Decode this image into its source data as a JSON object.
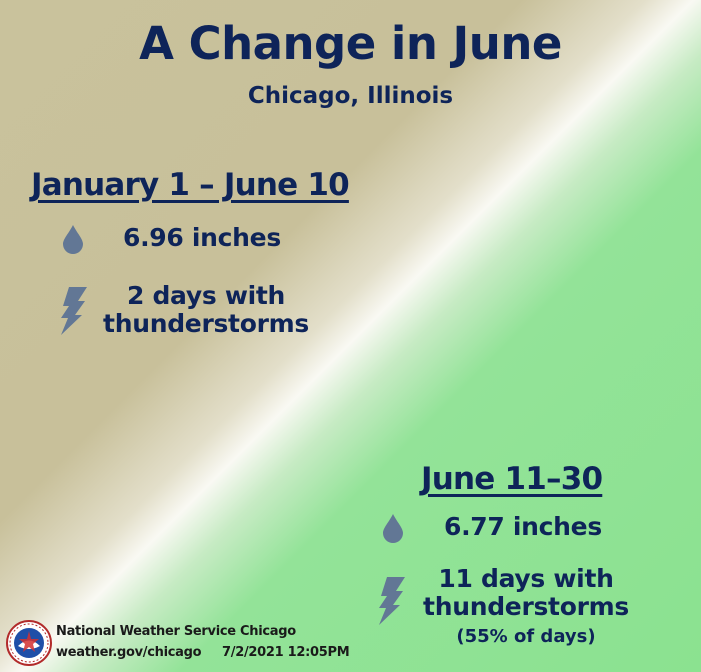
{
  "title": "A Change in June",
  "subtitle": "Chicago, Illinois",
  "period1": {
    "heading": "January 1 – June 10",
    "rainfall": "6.96 inches",
    "storm_line1": "2 days with",
    "storm_line2": "thunderstorms"
  },
  "period2": {
    "heading": "June 11–30",
    "rainfall": "6.77 inches",
    "storm_line1": "11 days with",
    "storm_line2": "thunderstorms",
    "storm_pct": "(55% of days)"
  },
  "footer": {
    "org": "National Weather Service Chicago",
    "url": "weather.gov/chicago",
    "timestamp": "7/2/2021 12:05PM",
    "logo_text": "NATIONAL WEATHER SERVICE NOAA"
  },
  "icons": {
    "rain": "raindrop-icon",
    "storm": "lightning-icon",
    "logo": "nws-logo-icon"
  },
  "colors": {
    "text": "#0e2459",
    "icon": "#627795",
    "bg_tan": "#c9c29c",
    "bg_green": "#8be290"
  }
}
